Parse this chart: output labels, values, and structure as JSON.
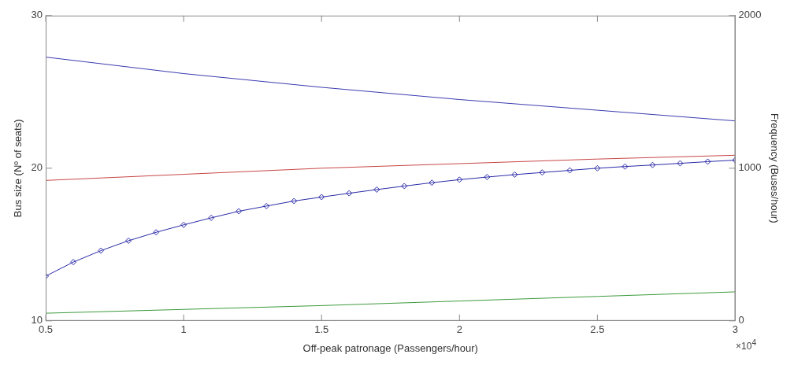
{
  "chart_data": {
    "type": "line",
    "xlabel": "Off-peak patronage (Passengers/hour)",
    "ylabel": "Bus size (Nº of seats)",
    "y2label": "Frequency (Buses/hour)",
    "xlim": [
      0.5,
      3
    ],
    "xticks": [
      0.5,
      1,
      1.5,
      2,
      2.5,
      3
    ],
    "ylim": [
      10,
      30
    ],
    "yticks": [
      10,
      20,
      30
    ],
    "y2lim": [
      0,
      2000
    ],
    "y2ticks": [
      0,
      1000,
      2000
    ],
    "grid": false,
    "legend": false,
    "marker": "none",
    "line_style": "solid",
    "annotations": [
      "×10$^{4}$"
    ],
    "series": [
      {
        "color": "#3b3bb0",
        "x": [
          0.5,
          1,
          1.5,
          2,
          2.5,
          3
        ],
        "values": [
          27.28,
          26.2,
          25.3,
          24.5,
          23.8,
          23.1
        ]
      },
      {
        "color": "#c84646",
        "x": [
          0.5,
          1,
          1.5,
          2,
          2.5,
          3
        ],
        "values": [
          19.2,
          19.6,
          20.0,
          20.3,
          20.6,
          20.85
        ]
      },
      {
        "color": "#2a2aa8",
        "axis": "y2",
        "marker": "diamond",
        "x": [
          0.5,
          0.6,
          0.7,
          0.8,
          0.9,
          1.0,
          1.1,
          1.2,
          1.3,
          1.4,
          1.5,
          1.6,
          1.7,
          1.8,
          1.9,
          2.0,
          2.1,
          2.2,
          2.3,
          2.4,
          2.5,
          2.6,
          2.7,
          2.8,
          2.9,
          3.0
        ],
        "values": [
          293,
          385,
          460,
          525,
          580,
          629,
          675,
          718,
          752,
          785,
          811,
          836,
          860,
          883,
          905,
          925,
          942,
          958,
          972,
          986,
          1000,
          1011,
          1021,
          1032,
          1043,
          1053
        ]
      },
      {
        "color": "#3c9a3c",
        "x": [
          0.5,
          1,
          1.5,
          2,
          2.5,
          3
        ],
        "values": [
          10.5,
          10.75,
          11.0,
          11.3,
          11.6,
          11.9
        ]
      }
    ]
  }
}
